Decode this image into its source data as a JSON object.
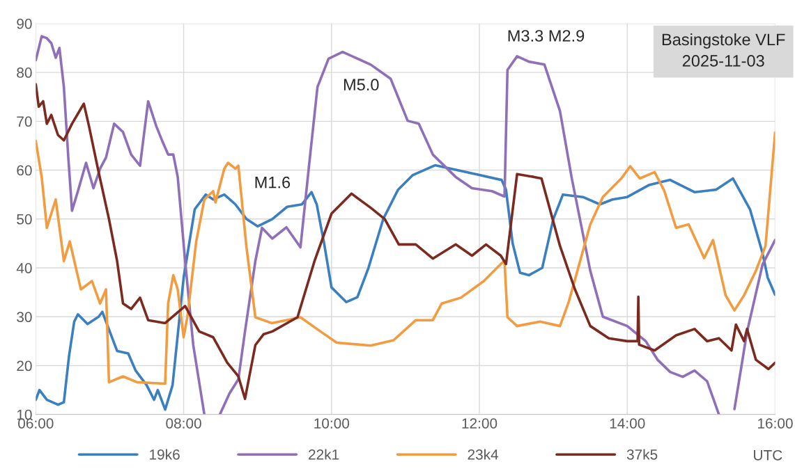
{
  "chart_data": {
    "type": "line",
    "xlabel": "UTC",
    "xlim": [
      6,
      16
    ],
    "ylim": [
      10,
      90
    ],
    "xticks": [
      {
        "value": 6,
        "label": "06:00"
      },
      {
        "value": 8,
        "label": "08:00"
      },
      {
        "value": 10,
        "label": "10:00"
      },
      {
        "value": 12,
        "label": "12:00"
      },
      {
        "value": 14,
        "label": "14:00"
      },
      {
        "value": 16,
        "label": "16:00"
      }
    ],
    "yticks": [
      10,
      20,
      30,
      40,
      50,
      60,
      70,
      80,
      90
    ],
    "grid": true,
    "legend": "bottom",
    "line_style": "solid",
    "marker": "none",
    "annotations": [
      "Basingstoke VLF\n2025-11-03",
      "M1.6",
      "M5.0",
      "M3.3 M2.9"
    ],
    "series": [
      {
        "name": "19k6",
        "color": "#3a7fbf",
        "x": [
          6.0,
          6.05,
          6.15,
          6.3,
          6.38,
          6.45,
          6.52,
          6.57,
          6.7,
          6.85,
          6.9,
          7.0,
          7.1,
          7.25,
          7.35,
          7.5,
          7.6,
          7.65,
          7.75,
          7.85,
          8.0,
          8.15,
          8.3,
          8.4,
          8.55,
          8.7,
          8.85,
          9.0,
          9.2,
          9.4,
          9.6,
          9.73,
          9.8,
          9.9,
          10.0,
          10.2,
          10.35,
          10.5,
          10.7,
          10.9,
          11.1,
          11.4,
          11.7,
          12.0,
          12.3,
          12.36,
          12.45,
          12.55,
          12.67,
          12.85,
          13.0,
          13.13,
          13.4,
          13.63,
          13.8,
          14.0,
          14.3,
          14.58,
          14.91,
          15.2,
          15.43,
          15.66,
          15.83,
          15.9,
          16.0
        ],
        "values": [
          13,
          15,
          13,
          12,
          12.5,
          22,
          29,
          30.5,
          28.5,
          30,
          31,
          27,
          23,
          22.5,
          19,
          16,
          13,
          15,
          11,
          16,
          38,
          52,
          55,
          54,
          55,
          53,
          50,
          48.5,
          50,
          52.5,
          53,
          55.5,
          53,
          45,
          36,
          33,
          34,
          40,
          50,
          56,
          59,
          61,
          60,
          59,
          58,
          56,
          45,
          39,
          38.5,
          40,
          50,
          55,
          54.5,
          53,
          54,
          54.5,
          57,
          58,
          55.5,
          56,
          58.3,
          52,
          43,
          38,
          34.5
        ]
      },
      {
        "name": "22k1",
        "color": "#8e6fb8",
        "x": [
          6.0,
          6.08,
          6.15,
          6.21,
          6.27,
          6.32,
          6.38,
          6.44,
          6.49,
          6.57,
          6.68,
          6.78,
          6.87,
          6.95,
          7.06,
          7.18,
          7.29,
          7.41,
          7.52,
          7.63,
          7.71,
          7.79,
          7.86,
          7.92,
          8.02,
          8.13,
          8.28,
          8.38,
          8.49,
          8.62,
          8.74,
          8.83,
          8.97,
          9.06,
          9.2,
          9.39,
          9.58,
          9.7,
          9.81,
          9.96,
          10.15,
          10.53,
          10.8,
          11.03,
          11.18,
          11.37,
          11.68,
          11.9,
          12.17,
          12.34,
          12.38,
          12.51,
          12.67,
          12.88,
          13.09,
          13.25,
          13.5,
          13.67,
          14.0,
          14.25,
          14.41,
          14.58,
          14.75,
          14.91,
          15.08,
          15.24,
          15.35,
          15.45,
          15.62,
          15.83,
          16.0
        ],
        "values": [
          82.5,
          87.4,
          87,
          86,
          83,
          85,
          77,
          62.6,
          51.7,
          55.7,
          61.5,
          56.3,
          60.3,
          62.6,
          69.5,
          67.8,
          63.2,
          60.9,
          74.1,
          69,
          66,
          63.2,
          63.2,
          58.6,
          41.4,
          24.2,
          10,
          null,
          10,
          14.3,
          17.2,
          27,
          41.4,
          48.2,
          46,
          48.3,
          44.2,
          61.5,
          77,
          82.8,
          84.2,
          81.6,
          78.7,
          70.1,
          69.5,
          63.2,
          58.6,
          56.3,
          55.7,
          54.6,
          80.5,
          83.3,
          82.2,
          81.6,
          72.1,
          58.3,
          39.4,
          30,
          28.1,
          25,
          21.2,
          18.7,
          17.7,
          19,
          16.8,
          10,
          null,
          11.1,
          26.9,
          40.7,
          45.7
        ]
      },
      {
        "name": "23k4",
        "color": "#f39b3f",
        "x": [
          6.0,
          6.08,
          6.15,
          6.21,
          6.27,
          6.38,
          6.46,
          6.61,
          6.76,
          6.87,
          6.95,
          6.99,
          7.18,
          7.37,
          7.75,
          7.79,
          7.86,
          7.92,
          8.0,
          8.05,
          8.17,
          8.28,
          8.4,
          8.43,
          8.55,
          8.6,
          8.7,
          8.74,
          8.85,
          8.97,
          9.19,
          9.39,
          9.58,
          9.85,
          10.07,
          10.53,
          10.84,
          11.14,
          11.37,
          11.49,
          11.75,
          12.06,
          12.29,
          12.34,
          12.38,
          12.51,
          12.82,
          13.09,
          13.21,
          13.5,
          13.67,
          13.92,
          14.04,
          14.17,
          14.37,
          14.5,
          14.66,
          14.83,
          15.04,
          15.16,
          15.33,
          15.45,
          15.58,
          15.74,
          15.87,
          16.0
        ],
        "values": [
          66,
          58.6,
          48.2,
          51.1,
          54,
          41.4,
          45.4,
          35.6,
          37.3,
          32.7,
          35.6,
          16.6,
          17.8,
          16.6,
          16.3,
          32.7,
          38.5,
          35.6,
          25.8,
          29.9,
          45.4,
          54,
          55.7,
          53.4,
          60.3,
          61.5,
          60.3,
          60.9,
          44.2,
          29.9,
          28.7,
          29.3,
          29.9,
          27,
          24.7,
          24.1,
          25.2,
          29.3,
          29.3,
          32.7,
          33.9,
          37.3,
          40.8,
          41.4,
          29.9,
          28.1,
          29,
          28.1,
          33.1,
          48.9,
          54.5,
          58.3,
          60.8,
          58.3,
          59.6,
          55.8,
          48.2,
          48.9,
          42,
          45.7,
          34.4,
          31.3,
          34.4,
          39.4,
          44.5,
          67.7
        ]
      },
      {
        "name": "37k5",
        "color": "#7b2a1f",
        "x": [
          6.0,
          6.04,
          6.1,
          6.15,
          6.21,
          6.3,
          6.38,
          6.49,
          6.65,
          6.72,
          6.84,
          6.99,
          7.1,
          7.18,
          7.29,
          7.41,
          7.52,
          7.75,
          8.02,
          8.21,
          8.4,
          8.59,
          8.74,
          8.83,
          8.97,
          9.08,
          9.2,
          9.54,
          9.77,
          10.0,
          10.27,
          10.53,
          10.72,
          10.91,
          11.14,
          11.37,
          11.68,
          11.9,
          12.09,
          12.29,
          12.36,
          12.51,
          12.74,
          12.84,
          13.09,
          13.29,
          13.5,
          13.75,
          14.0,
          14.14,
          14.15,
          14.16,
          14.37,
          14.66,
          14.91,
          15.08,
          15.24,
          15.41,
          15.47,
          15.58,
          15.62,
          15.74,
          15.91,
          16.0
        ],
        "values": [
          77.6,
          73,
          74.1,
          69.5,
          71.3,
          67.2,
          66.1,
          69.5,
          73.6,
          69,
          60.3,
          50,
          41.4,
          32.7,
          31.6,
          33.9,
          29.3,
          28.7,
          32.2,
          27,
          25.8,
          20.6,
          17.8,
          13.2,
          24.2,
          26.4,
          27,
          29.9,
          41.4,
          51.1,
          55.2,
          52.3,
          50,
          44.8,
          44.8,
          41.9,
          44.8,
          42.5,
          44.8,
          42.5,
          40.8,
          59.2,
          58.6,
          58.3,
          44.5,
          35.7,
          28.1,
          25.6,
          25,
          25,
          34.1,
          24.3,
          23.1,
          26.2,
          27.5,
          25,
          25.6,
          23.1,
          28.4,
          25,
          27.5,
          21.2,
          19.3,
          20.6
        ]
      }
    ]
  }
}
